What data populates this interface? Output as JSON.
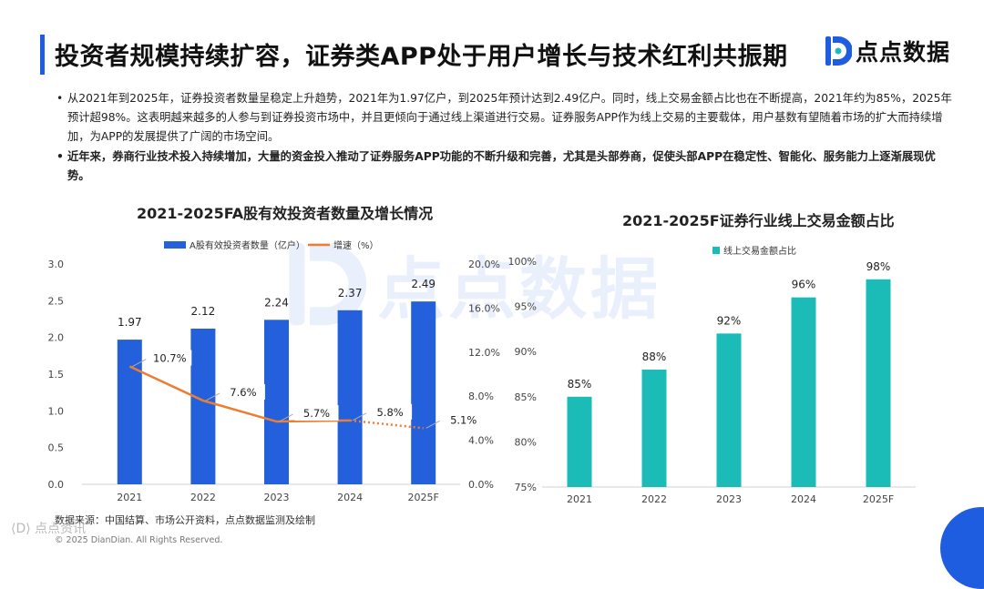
{
  "header": {
    "title": "投资者规模持续扩容，证券类APP处于用户增长与技术红利共振期",
    "logo_text": "点点数据",
    "accent_color": "#1f5de0"
  },
  "bullets": [
    "从2021年到2025年，证券投资者数量呈稳定上升趋势，2021年为1.97亿户，到2025年预计达到2.49亿户。同时，线上交易金额占比也在不断提高，2021年约为85%，2025年预计超98%。这表明越来越多的人参与到证券投资市场中，并且更倾向于通过线上渠道进行交易。证券服务APP作为线上交易的主要载体，用户基数有望随着市场的扩大而持续增加，为APP的发展提供了广阔的市场空间。",
    "近年来，券商行业技术投入持续增加，大量的资金投入推动了证券服务APP功能的不断升级和完善，尤其是头部券商，促使头部APP在稳定性、智能化、服务能力上逐渐展现优势。"
  ],
  "watermark": {
    "text": "点点数据"
  },
  "chart_data": [
    {
      "type": "bar",
      "title": "2021-2025FA股有效投资者数量及增长情况",
      "categories": [
        "2021",
        "2022",
        "2023",
        "2024",
        "2025F"
      ],
      "series": [
        {
          "name": "A股有效投资者数量（亿户）",
          "type": "bar",
          "axis": "left",
          "values": [
            1.97,
            2.12,
            2.24,
            2.37,
            2.49
          ],
          "labels": [
            "1.97",
            "2.12",
            "2.24",
            "2.37",
            "2.49"
          ],
          "color": "#2460dc"
        },
        {
          "name": "增速（%）",
          "type": "line",
          "axis": "right",
          "values": [
            10.7,
            7.6,
            5.7,
            5.8,
            5.1
          ],
          "labels": [
            "10.7%",
            "7.6%",
            "5.7%",
            "5.8%",
            "5.1%"
          ],
          "dashed_last_segment": true,
          "color": "#ed7d31"
        }
      ],
      "ylim": [
        0,
        3.0
      ],
      "yticks": [
        "0.0",
        "0.5",
        "1.0",
        "1.5",
        "2.0",
        "2.5",
        "3.0"
      ],
      "y2lim": [
        0,
        20
      ],
      "y2ticks": [
        "0.0%",
        "4.0%",
        "8.0%",
        "12.0%",
        "16.0%",
        "20.0%"
      ],
      "legend": "top",
      "grid": false
    },
    {
      "type": "bar",
      "title": "2021-2025F证券行业线上交易金额占比",
      "categories": [
        "2021",
        "2022",
        "2023",
        "2024",
        "2025F"
      ],
      "series": [
        {
          "name": "线上交易金额占比",
          "values": [
            85,
            88,
            92,
            96,
            98
          ],
          "labels": [
            "85%",
            "88%",
            "92%",
            "96%",
            "98%"
          ],
          "color": "#1bbcb8"
        }
      ],
      "ylim": [
        75,
        100
      ],
      "yticks": [
        "75%",
        "80%",
        "85%",
        "90%",
        "95%",
        "100%"
      ],
      "legend": "top-left",
      "grid": false
    }
  ],
  "footer": {
    "source": "数据来源：中国结算、市场公开资料，点点数据监测及绘制",
    "copyright": "© 2025 DianDian. All Rights Reserved.",
    "corner_watermark": "⟨D⟩ 点点资讯"
  }
}
